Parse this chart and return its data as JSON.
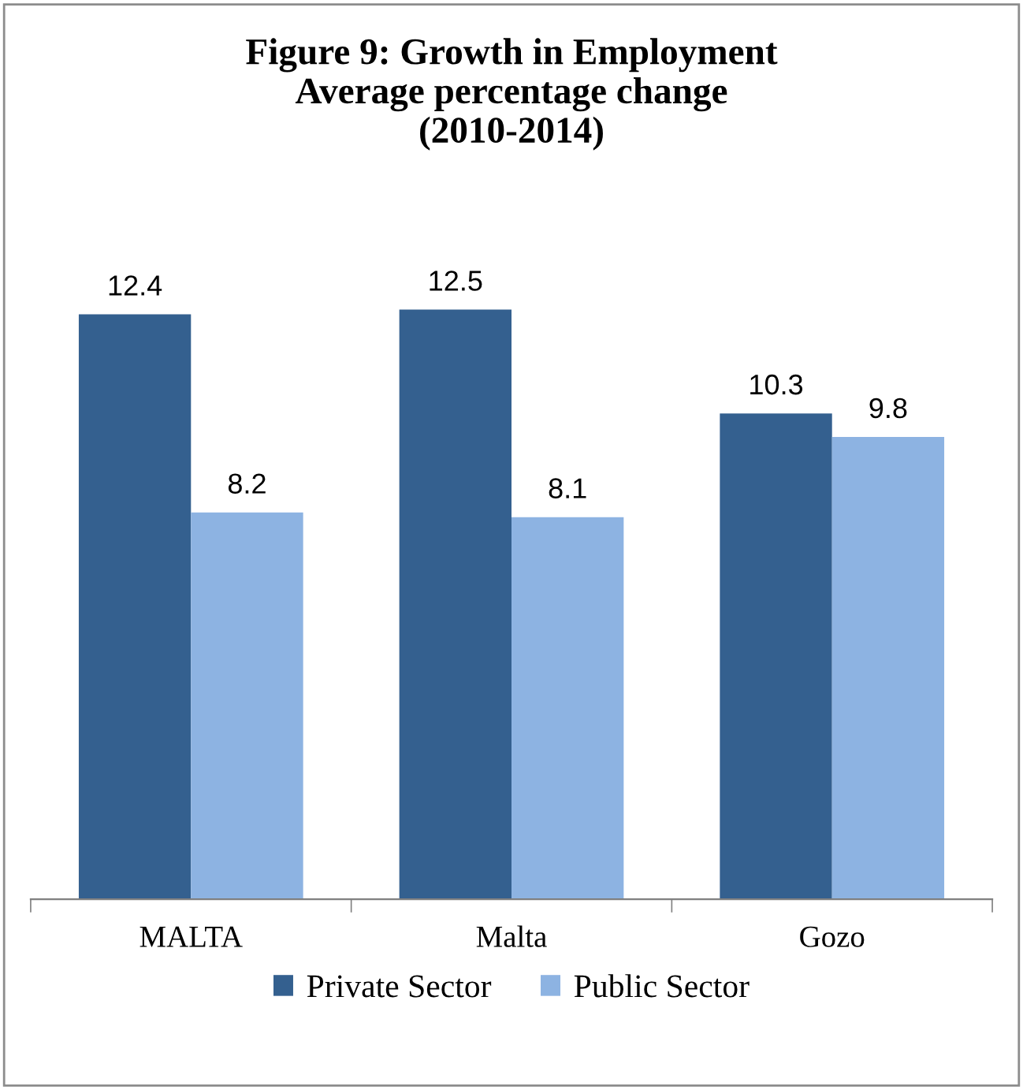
{
  "chart_data": {
    "type": "bar",
    "title": "Figure 9: Growth in Employment\nAverage percentage change\n(2010-2014)",
    "categories": [
      "MALTA",
      "Malta",
      "Gozo"
    ],
    "series": [
      {
        "name": "Private Sector",
        "color": "#34608f",
        "values": [
          12.4,
          12.5,
          10.3
        ]
      },
      {
        "name": "Public Sector",
        "color": "#8db3e2",
        "values": [
          8.2,
          8.1,
          9.8
        ]
      }
    ],
    "data_labels": true,
    "legend": "bottom",
    "grid": false,
    "tick_labels": "x"
  }
}
